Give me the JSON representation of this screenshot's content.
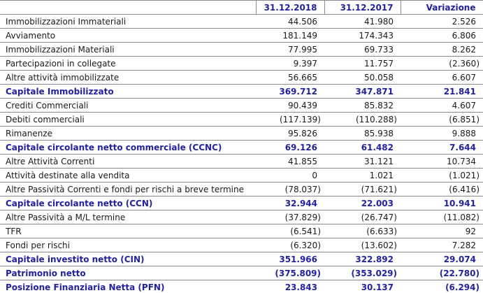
{
  "colors": {
    "accent": "#22229E",
    "border": "#8A8A8A",
    "text": "#1A1A1A"
  },
  "table": {
    "columns": [
      "",
      "31.12.2018",
      "31.12.2017",
      "Variazione"
    ],
    "rows": [
      {
        "label": "Immobilizzazioni Immateriali",
        "v2018": "44.506",
        "v2017": "41.980",
        "variazione": "2.526",
        "style": "normal"
      },
      {
        "label": "Avviamento",
        "v2018": "181.149",
        "v2017": "174.343",
        "variazione": "6.806",
        "style": "normal"
      },
      {
        "label": "Immobilizzazioni Materiali",
        "v2018": "77.995",
        "v2017": "69.733",
        "variazione": "8.262",
        "style": "normal"
      },
      {
        "label": "Partecipazioni in collegate",
        "v2018": "9.397",
        "v2017": "11.757",
        "variazione": "(2.360)",
        "style": "normal"
      },
      {
        "label": "Altre attività immobilizzate",
        "v2018": "56.665",
        "v2017": "50.058",
        "variazione": "6.607",
        "style": "normal"
      },
      {
        "label": "Capitale Immobilizzato",
        "v2018": "369.712",
        "v2017": "347.871",
        "variazione": "21.841",
        "style": "section"
      },
      {
        "label": "Crediti Commerciali",
        "v2018": "90.439",
        "v2017": "85.832",
        "variazione": "4.607",
        "style": "normal"
      },
      {
        "label": "Debiti commerciali",
        "v2018": "(117.139)",
        "v2017": "(110.288)",
        "variazione": "(6.851)",
        "style": "normal"
      },
      {
        "label": "Rimanenze",
        "v2018": "95.826",
        "v2017": "85.938",
        "variazione": "9.888",
        "style": "normal"
      },
      {
        "label": "Capitale circolante netto commerciale (CCNC)",
        "v2018": "69.126",
        "v2017": "61.482",
        "variazione": "7.644",
        "style": "section"
      },
      {
        "label": "Altre Attività Correnti",
        "v2018": "41.855",
        "v2017": "31.121",
        "variazione": "10.734",
        "style": "normal"
      },
      {
        "label": "Attività destinate alla vendita",
        "v2018": "0",
        "v2017": "1.021",
        "variazione": "(1.021)",
        "style": "normal"
      },
      {
        "label": "Altre Passività Correnti e fondi per rischi a breve termine",
        "v2018": "(78.037)",
        "v2017": "(71.621)",
        "variazione": "(6.416)",
        "style": "normal"
      },
      {
        "label": "Capitale circolante netto (CCN)",
        "v2018": "32.944",
        "v2017": "22.003",
        "variazione": "10.941",
        "style": "section"
      },
      {
        "label": "Altre Passività a M/L termine",
        "v2018": "(37.829)",
        "v2017": "(26.747)",
        "variazione": "(11.082)",
        "style": "normal"
      },
      {
        "label": "TFR",
        "v2018": "(6.541)",
        "v2017": "(6.633)",
        "variazione": "92",
        "style": "normal"
      },
      {
        "label": "Fondi per rischi",
        "v2018": "(6.320)",
        "v2017": "(13.602)",
        "variazione": "7.282",
        "style": "normal"
      },
      {
        "label": "Capitale investito netto (CIN)",
        "v2018": "351.966",
        "v2017": "322.892",
        "variazione": "29.074",
        "style": "section"
      },
      {
        "label": "Patrimonio netto",
        "v2018": "(375.809)",
        "v2017": "(353.029)",
        "variazione": "(22.780)",
        "style": "section"
      },
      {
        "label": "Posizione Finanziaria Netta (PFN)",
        "v2018": "23.843",
        "v2017": "30.137",
        "variazione": "(6.294)",
        "style": "section"
      }
    ]
  }
}
